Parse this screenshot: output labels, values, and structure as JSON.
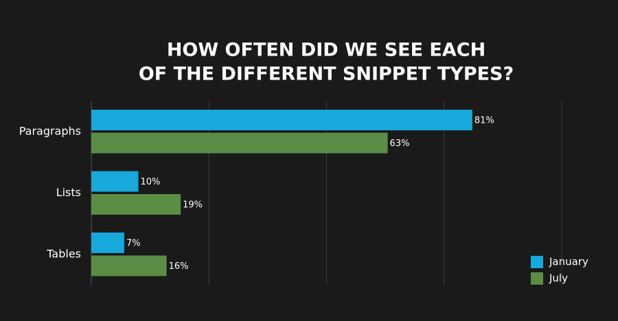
{
  "chart_data": {
    "type": "bar",
    "orientation": "horizontal",
    "title": [
      "HOW OFTEN DID WE SEE EACH",
      "OF THE DIFFERENT SNIPPET TYPES?"
    ],
    "categories": [
      "Paragraphs",
      "Lists",
      "Tables"
    ],
    "series": [
      {
        "name": "January",
        "color": "#17a8dc",
        "values": [
          81,
          10,
          7
        ],
        "value_labels": [
          "81%",
          "10%",
          "7%"
        ]
      },
      {
        "name": "July",
        "color": "#5b8d46",
        "values": [
          63,
          19,
          16
        ],
        "value_labels": [
          "63%",
          "19%",
          "16%"
        ]
      }
    ],
    "xlim": [
      0,
      100
    ],
    "xticks": [
      0,
      25,
      50,
      75,
      100
    ],
    "grid": true,
    "legend": "bottom-right"
  }
}
